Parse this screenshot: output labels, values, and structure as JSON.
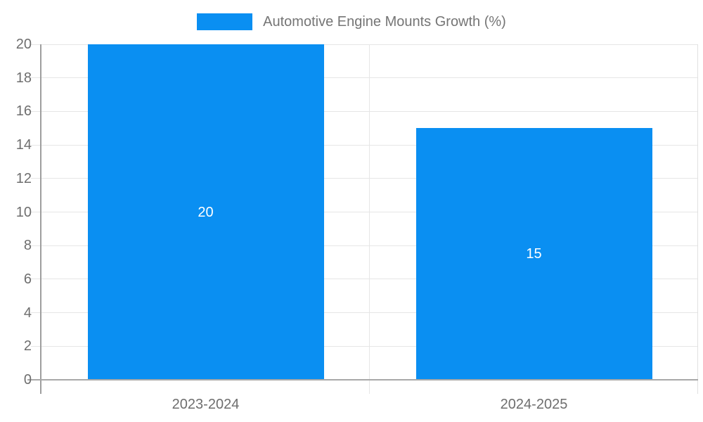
{
  "legend": {
    "label": "Automotive Engine Mounts Growth (%)"
  },
  "chart_data": {
    "type": "bar",
    "title": "Automotive Engine Mounts Growth (%)",
    "categories": [
      "2023-2024",
      "2024-2025"
    ],
    "values": [
      20,
      15
    ],
    "value_labels": [
      "20",
      "15"
    ],
    "xlabel": "",
    "ylabel": "",
    "ylim": [
      0,
      20
    ],
    "yticks": [
      0,
      2,
      4,
      6,
      8,
      10,
      12,
      14,
      16,
      18,
      20
    ],
    "grid": true,
    "legend_position": "top-center",
    "colors": {
      "bar": "#0a8ff2",
      "value_label": "#ffffff",
      "legend_text": "#757575",
      "axis_text": "#6e6e6e",
      "gridline": "#e6e6e6",
      "axis_line": "#9e9e9e",
      "baseline": "#a8a8a8",
      "frame_line": "#e0e0e0"
    }
  }
}
